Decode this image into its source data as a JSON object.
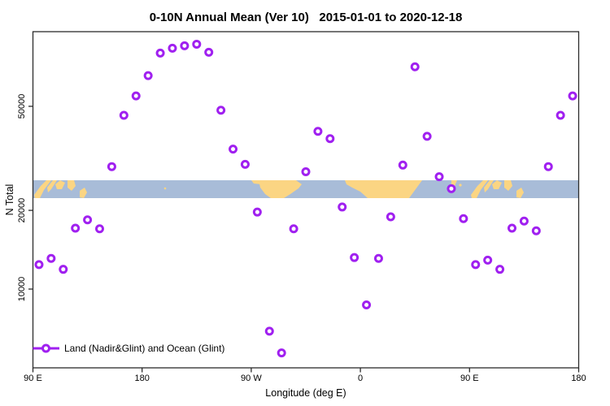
{
  "title": "0-10N Annual Mean (Ver 10)   2015-01-01 to 2020-12-18",
  "legend": {
    "label": "Land (Nadir&Glint) and Ocean (Glint)"
  },
  "colors": {
    "marker": "#A020F0",
    "marker_fill": "#FFFFFF",
    "axis": "#2B2B2B",
    "ocean": "#A8BCD8",
    "land": "#FBD583"
  },
  "chart_data": {
    "type": "scatter",
    "title": "0-10N Annual Mean (Ver 10)   2015-01-01 to 2020-12-18",
    "xlabel": "Longitude (deg E)",
    "ylabel": "N Total",
    "y_scale": "log10",
    "x_range_deg": [
      90,
      540
    ],
    "y_range": [
      4900,
      96000
    ],
    "grid": false,
    "legend_position": "bottom-left-inside",
    "x_ticks": [
      {
        "deg": 90,
        "label": "90 E"
      },
      {
        "deg": 180,
        "label": "180"
      },
      {
        "deg": 270,
        "label": "90 W"
      },
      {
        "deg": 360,
        "label": "0"
      },
      {
        "deg": 450,
        "label": "90 E"
      },
      {
        "deg": 540,
        "label": "180"
      }
    ],
    "y_ticks": [
      {
        "value": 10000,
        "label": "10000"
      },
      {
        "value": 20000,
        "label": "20000"
      },
      {
        "value": 50000,
        "label": "50000"
      }
    ],
    "map_band": {
      "description": "0-10N latitude world coastline strip",
      "value_top": 26000,
      "value_bottom": 22300
    },
    "series": [
      {
        "name": "Land (Nadir&Glint) and Ocean (Glint)",
        "marker": "open-circle",
        "color": "#A020F0",
        "x_deg": [
          95,
          105,
          115,
          125,
          135,
          145,
          155,
          165,
          175,
          185,
          195,
          205,
          215,
          225,
          235,
          245,
          255,
          265,
          275,
          285,
          295,
          305,
          315,
          325,
          335,
          345,
          355,
          365,
          375,
          385,
          395,
          405,
          415,
          425,
          435,
          445,
          455,
          465,
          475,
          485,
          495,
          505,
          515,
          525,
          535
        ],
        "values": [
          12400,
          13100,
          11900,
          17100,
          18400,
          17000,
          29400,
          46200,
          54800,
          65500,
          79900,
          83400,
          85200,
          86400,
          80500,
          48300,
          34300,
          30000,
          19700,
          6900,
          5700,
          17000,
          28100,
          40100,
          37600,
          20600,
          13200,
          8700,
          13100,
          18900,
          29800,
          70800,
          38400,
          26900,
          24200,
          18600,
          12400,
          12900,
          11900,
          17100,
          18200,
          16700,
          29400,
          46200,
          54800
        ]
      }
    ]
  }
}
